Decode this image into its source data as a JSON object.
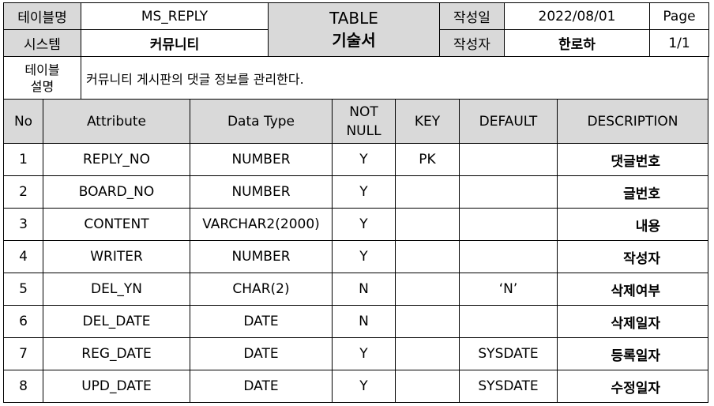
{
  "header": {
    "table_name_label": "테이블명",
    "table_name": "MS_REPLY",
    "doc_title_line1": "TABLE",
    "doc_title_line2": "기술서",
    "date_label": "작성일",
    "date": "2022/08/01",
    "page_label": "Page",
    "system_label": "시스템",
    "system": "커뮤니티",
    "author_label": "작성자",
    "author": "한로하",
    "page": "1/1",
    "desc_label_line1": "테이블",
    "desc_label_line2": "설명",
    "description": "커뮤니티 게시판의 댓글 정보를 관리한다."
  },
  "columns": {
    "no": "No",
    "attribute": "Attribute",
    "data_type": "Data Type",
    "not_null_line1": "NOT",
    "not_null_line2": "NULL",
    "key": "KEY",
    "default": "DEFAULT",
    "description": "DESCRIPTION"
  },
  "rows": [
    {
      "no": "1",
      "attribute": "REPLY_NO",
      "type": "NUMBER",
      "not_null": "Y",
      "key": "PK",
      "default": "",
      "description": "댓글번호"
    },
    {
      "no": "2",
      "attribute": "BOARD_NO",
      "type": "NUMBER",
      "not_null": "Y",
      "key": "",
      "default": "",
      "description": "글번호"
    },
    {
      "no": "3",
      "attribute": "CONTENT",
      "type": "VARCHAR2(2000)",
      "not_null": "Y",
      "key": "",
      "default": "",
      "description": "내용"
    },
    {
      "no": "4",
      "attribute": "WRITER",
      "type": "NUMBER",
      "not_null": "Y",
      "key": "",
      "default": "",
      "description": "작성자"
    },
    {
      "no": "5",
      "attribute": "DEL_YN",
      "type": "CHAR(2)",
      "not_null": "N",
      "key": "",
      "default": "‘N’",
      "description": "삭제여부"
    },
    {
      "no": "6",
      "attribute": "DEL_DATE",
      "type": "DATE",
      "not_null": "N",
      "key": "",
      "default": "",
      "description": "삭제일자"
    },
    {
      "no": "7",
      "attribute": "REG_DATE",
      "type": "DATE",
      "not_null": "Y",
      "key": "",
      "default": "SYSDATE",
      "description": "등록일자"
    },
    {
      "no": "8",
      "attribute": "UPD_DATE",
      "type": "DATE",
      "not_null": "Y",
      "key": "",
      "default": "SYSDATE",
      "description": "수정일자"
    }
  ]
}
